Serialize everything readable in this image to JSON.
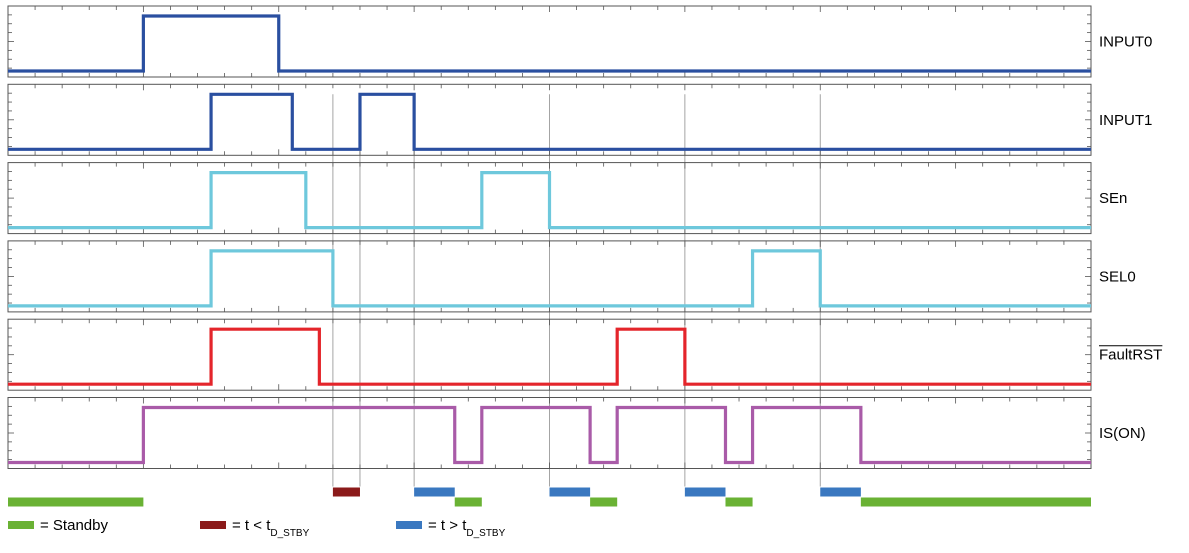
{
  "chart_data": {
    "type": "timing-diagram",
    "time_range": [
      0,
      40
    ],
    "signals": [
      {
        "name": "INPUT0",
        "overline": false,
        "color": "#2a4fa0",
        "levels": [
          [
            0,
            0
          ],
          [
            5,
            1
          ],
          [
            10,
            0
          ],
          [
            40,
            0
          ]
        ]
      },
      {
        "name": "INPUT1",
        "overline": false,
        "color": "#2a4fa0",
        "levels": [
          [
            0,
            0
          ],
          [
            7.5,
            1
          ],
          [
            10.5,
            0
          ],
          [
            13,
            1
          ],
          [
            15,
            0
          ],
          [
            40,
            0
          ]
        ]
      },
      {
        "name": "SEn",
        "overline": false,
        "color": "#6ec8dc",
        "levels": [
          [
            0,
            0
          ],
          [
            7.5,
            1
          ],
          [
            11,
            0
          ],
          [
            17.5,
            1
          ],
          [
            20,
            0
          ],
          [
            40,
            0
          ]
        ]
      },
      {
        "name": "SEL0",
        "overline": false,
        "color": "#6ec8dc",
        "levels": [
          [
            0,
            0
          ],
          [
            7.5,
            1
          ],
          [
            12,
            0
          ],
          [
            27.5,
            1
          ],
          [
            30,
            0
          ],
          [
            40,
            0
          ]
        ]
      },
      {
        "name": "FaultRST",
        "overline": true,
        "color": "#e4252b",
        "levels": [
          [
            0,
            0
          ],
          [
            7.5,
            1
          ],
          [
            11.5,
            0
          ],
          [
            22.5,
            1
          ],
          [
            25,
            0
          ],
          [
            40,
            0
          ]
        ]
      },
      {
        "name": "IS(ON)",
        "overline": false,
        "color": "#a95ba8",
        "levels": [
          [
            0,
            0
          ],
          [
            5,
            1
          ],
          [
            16.5,
            0
          ],
          [
            17.5,
            1
          ],
          [
            21.5,
            0
          ],
          [
            22.5,
            1
          ],
          [
            26.5,
            0
          ],
          [
            27.5,
            1
          ],
          [
            31.5,
            0
          ],
          [
            40,
            0
          ]
        ]
      }
    ],
    "markers": [
      12,
      13,
      15,
      20,
      25,
      30
    ],
    "bars": [
      {
        "kind": "standby",
        "start": 0,
        "end": 5
      },
      {
        "kind": "short",
        "start": 12,
        "end": 13
      },
      {
        "kind": "long",
        "start": 15,
        "end": 16.5
      },
      {
        "kind": "standby",
        "start": 16.5,
        "end": 17.5
      },
      {
        "kind": "long",
        "start": 20,
        "end": 21.5
      },
      {
        "kind": "standby",
        "start": 21.5,
        "end": 22.5
      },
      {
        "kind": "long",
        "start": 25,
        "end": 26.5
      },
      {
        "kind": "standby",
        "start": 26.5,
        "end": 27.5
      },
      {
        "kind": "long",
        "start": 30,
        "end": 31.5
      },
      {
        "kind": "standby",
        "start": 31.5,
        "end": 40
      }
    ]
  },
  "bar_colors": {
    "standby": "#6ab234",
    "short": "#8b1a1a",
    "long": "#3a78c0"
  },
  "legend": [
    {
      "kind": "standby",
      "text": "= Standby",
      "sub": ""
    },
    {
      "kind": "short",
      "text": "= t < t",
      "sub": "D_STBY"
    },
    {
      "kind": "long",
      "text": "= t > t",
      "sub": "D_STBY"
    }
  ]
}
